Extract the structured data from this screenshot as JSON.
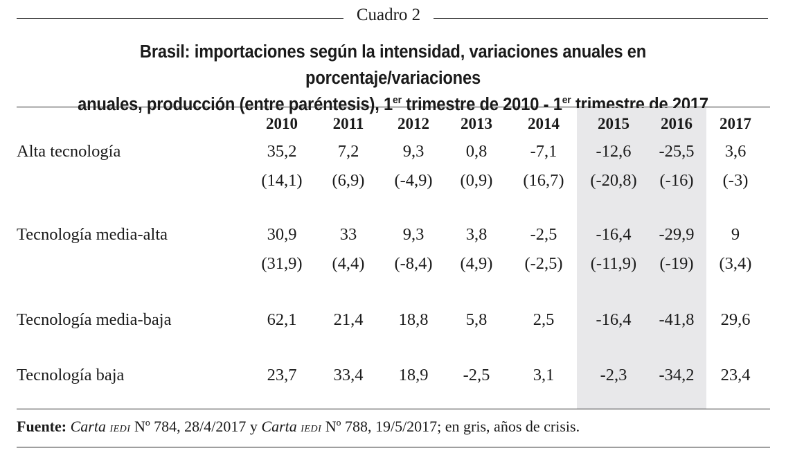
{
  "caption": "Cuadro 2",
  "title": {
    "line1": "Brasil: importaciones según la intensidad, variaciones anuales en porcentaje/variaciones",
    "line2_a": "anuales, producción (entre paréntesis), 1",
    "line2_sup1": "er",
    "line2_b": " trimestre de 2010 - 1",
    "line2_sup2": "er",
    "line2_c": " trimestre de 2017"
  },
  "table": {
    "years": [
      "2010",
      "2011",
      "2012",
      "2013",
      "2014",
      "2015",
      "2016",
      "2017"
    ],
    "crisis_years": [
      "2015",
      "2016"
    ],
    "rows": [
      {
        "label": "Alta tecnología",
        "imports": [
          "35,2",
          "7,2",
          "9,3",
          "0,8",
          "-7,1",
          "-12,6",
          "-25,5",
          "3,6"
        ],
        "production": [
          "(14,1)",
          "(6,9)",
          "(-4,9)",
          "(0,9)",
          "(16,7)",
          "(-20,8)",
          "(-16)",
          "(-3)"
        ]
      },
      {
        "label": "Tecnología media-alta",
        "imports": [
          "30,9",
          "33",
          "9,3",
          "3,8",
          "-2,5",
          "-16,4",
          "-29,9",
          "9"
        ],
        "production": [
          "(31,9)",
          "(4,4)",
          "(-8,4)",
          "(4,9)",
          "(-2,5)",
          "(-11,9)",
          "(-19)",
          "(3,4)"
        ]
      },
      {
        "label": "Tecnología media-baja",
        "imports": [
          "62,1",
          "21,4",
          "18,8",
          "5,8",
          "2,5",
          "-16,4",
          "-41,8",
          "29,6"
        ]
      },
      {
        "label": "Tecnología baja",
        "imports": [
          "23,7",
          "33,4",
          "18,9",
          "-2,5",
          "3,1",
          "-2,3",
          "-34,2",
          "23,4"
        ]
      }
    ]
  },
  "source": {
    "label": "Fuente:",
    "carta1": "Carta",
    "iedi1": "IEDI",
    "text1": " Nº 784, 28/4/2017 y ",
    "carta2": "Carta",
    "iedi2": "IEDI",
    "text2": " Nº 788, 19/5/2017; en gris, años de crisis."
  },
  "colors": {
    "crisis_shade": "#e8e8ea",
    "text": "#1a1a1a",
    "rule": "#222222"
  }
}
